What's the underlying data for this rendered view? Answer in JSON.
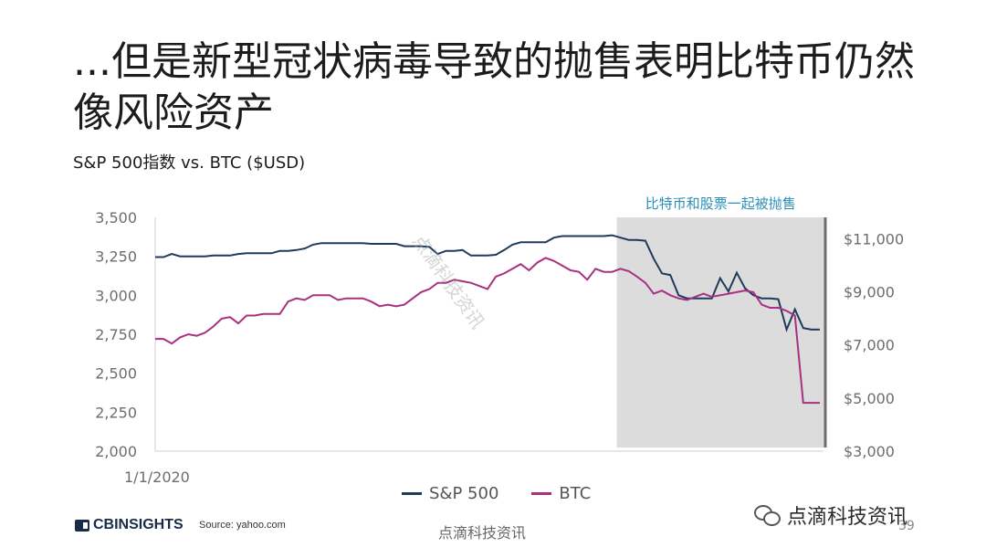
{
  "title": "...但是新型冠状病毒导致的抛售表明比特币仍然像风险资产",
  "subtitle": "S&P 500指数 vs. BTC ($USD)",
  "shade_label": "比特币和股票一起被抛售",
  "colors": {
    "sp500": "#1f3b5c",
    "btc": "#a8307f",
    "shade": "#dcdcdc"
  },
  "footer": {
    "logo": "CBINSIGHTS",
    "source": "Source: yahoo.com",
    "brand": "点滴科技资讯",
    "page": "39",
    "wechat": "点滴科技资讯"
  },
  "watermark": "点滴科技资讯",
  "chart_data": {
    "type": "line",
    "x_label": "1/1/2020",
    "left_axis": {
      "ticks": [
        "3,500",
        "3,250",
        "3,000",
        "2,750",
        "2,500",
        "2,250",
        "2,000"
      ],
      "ylim": [
        2000,
        3500
      ]
    },
    "right_axis": {
      "ticks": [
        "$11,000",
        "$9,000",
        "$7,000",
        "$5,000",
        "$3,000"
      ],
      "ylim": [
        3000,
        11800
      ]
    },
    "shaded_region": {
      "from_index": 56,
      "to_index": 79,
      "label": "比特币和股票一起被抛售"
    },
    "series": [
      {
        "name": "S&P 500",
        "axis": "left",
        "values": [
          3245,
          3245,
          3265,
          3250,
          3250,
          3250,
          3250,
          3255,
          3255,
          3255,
          3265,
          3270,
          3270,
          3270,
          3270,
          3285,
          3285,
          3290,
          3300,
          3325,
          3335,
          3335,
          3335,
          3335,
          3335,
          3335,
          3330,
          3330,
          3330,
          3330,
          3315,
          3315,
          3315,
          3310,
          3265,
          3285,
          3285,
          3290,
          3255,
          3255,
          3255,
          3260,
          3290,
          3325,
          3340,
          3340,
          3340,
          3340,
          3370,
          3380,
          3380,
          3380,
          3380,
          3380,
          3380,
          3385,
          3370,
          3355,
          3355,
          3350,
          3235,
          3140,
          3130,
          3000,
          2980,
          2980,
          2980,
          2980,
          3110,
          3025,
          3145,
          3045,
          3000,
          2980,
          2980,
          2975,
          2780,
          2910,
          2790,
          2780,
          2780
        ]
      },
      {
        "name": "BTC",
        "axis": "left",
        "values": [
          2720,
          2720,
          2690,
          2730,
          2750,
          2740,
          2760,
          2800,
          2850,
          2860,
          2820,
          2870,
          2870,
          2880,
          2880,
          2880,
          2960,
          2980,
          2970,
          3000,
          3000,
          3000,
          2970,
          2980,
          2980,
          2980,
          2960,
          2930,
          2940,
          2930,
          2940,
          2980,
          3020,
          3040,
          3080,
          3080,
          3100,
          3090,
          3080,
          3060,
          3040,
          3120,
          3140,
          3170,
          3200,
          3160,
          3210,
          3240,
          3220,
          3190,
          3160,
          3150,
          3100,
          3170,
          3150,
          3150,
          3170,
          3155,
          3120,
          3080,
          3010,
          3030,
          3000,
          2980,
          2970,
          2990,
          3010,
          2990,
          3000,
          3010,
          3020,
          3030,
          3020,
          2940,
          2920,
          2920,
          2900,
          2870,
          2310,
          2310,
          2310
        ]
      }
    ]
  }
}
